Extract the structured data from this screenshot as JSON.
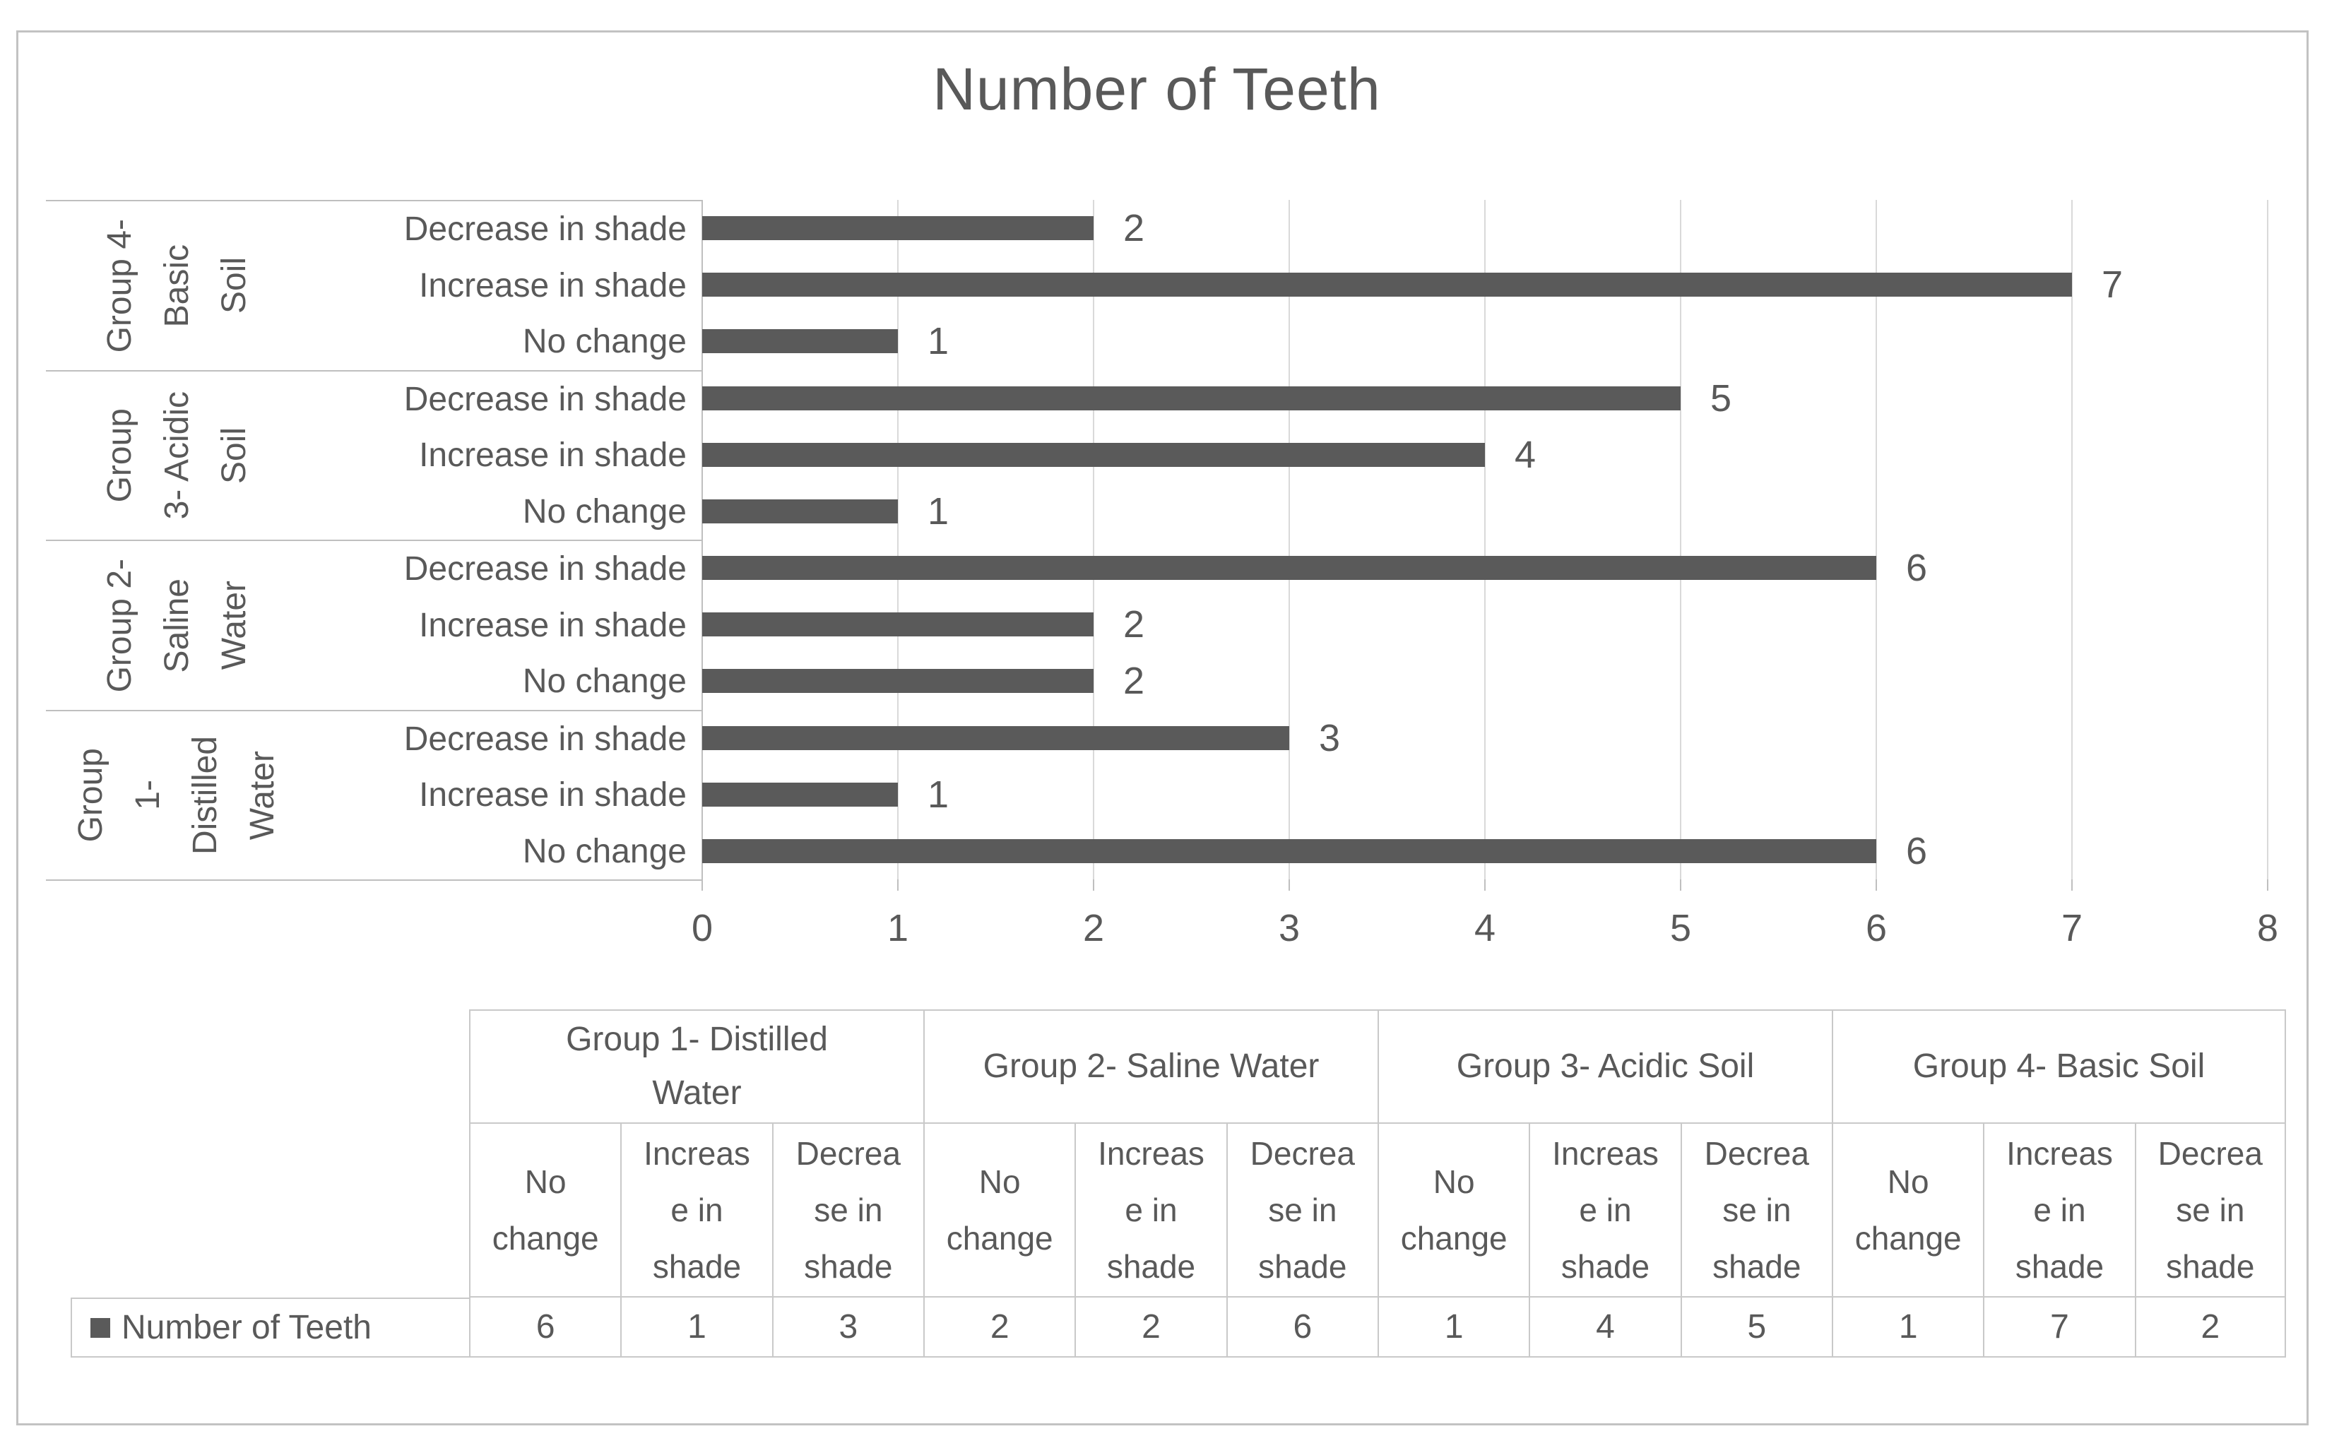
{
  "colors": {
    "bar": "#5a5a5a",
    "text": "#595959",
    "gridline": "#d9d9d9",
    "axis_line": "#bfbfbf",
    "panel_border": "#bfbfbf",
    "table_border": "#c9c9c9",
    "canvas_border": "#c2c2c2",
    "background": "#ffffff"
  },
  "chart_data": {
    "type": "bar",
    "orientation": "horizontal",
    "title": "Number of Teeth",
    "series_name": "Number of Teeth",
    "xlim": [
      0,
      8
    ],
    "x_ticks": [
      "0",
      "1",
      "2",
      "3",
      "4",
      "5",
      "6",
      "7",
      "8"
    ],
    "grid": true,
    "legend_position": "bottom-table",
    "categories": [
      "Decrease in shade",
      "Increase in shade",
      "No change"
    ],
    "groups": [
      {
        "name": "Group 4- Basic Soil",
        "name_lines": [
          "Group 4-",
          "Basic",
          "Soil"
        ],
        "values": [
          2,
          7,
          1
        ]
      },
      {
        "name": "Group 3- Acidic Soil",
        "name_lines": [
          "Group",
          "3- Acidic",
          "Soil"
        ],
        "values": [
          5,
          4,
          1
        ]
      },
      {
        "name": "Group 2- Saline Water",
        "name_lines": [
          "Group 2-",
          "Saline",
          "Water"
        ],
        "values": [
          6,
          2,
          2
        ]
      },
      {
        "name": "Group 1- Distilled Water",
        "name_lines": [
          "Group",
          "1-",
          "Distilled",
          "Water"
        ],
        "values": [
          3,
          1,
          6
        ]
      }
    ]
  },
  "data_table": {
    "legend_label": "Number of Teeth",
    "group_headers": [
      {
        "label": "Group 1- Distilled Water",
        "lines": [
          "Group 1- Distilled",
          "Water"
        ]
      },
      {
        "label": "Group 2- Saline Water",
        "lines": [
          "Group 2- Saline Water"
        ]
      },
      {
        "label": "Group 3- Acidic Soil",
        "lines": [
          "Group 3- Acidic Soil"
        ]
      },
      {
        "label": "Group 4- Basic Soil",
        "lines": [
          "Group 4- Basic Soil"
        ]
      }
    ],
    "sub_headers": [
      {
        "label": "No change",
        "lines": [
          "No",
          "change"
        ]
      },
      {
        "label": "Increase in shade",
        "lines": [
          "Increas",
          "e in",
          "shade"
        ]
      },
      {
        "label": "Decrease in shade",
        "lines": [
          "Decrea",
          "se in",
          "shade"
        ]
      }
    ],
    "values": [
      "6",
      "1",
      "3",
      "2",
      "2",
      "6",
      "1",
      "4",
      "5",
      "1",
      "7",
      "2"
    ]
  }
}
